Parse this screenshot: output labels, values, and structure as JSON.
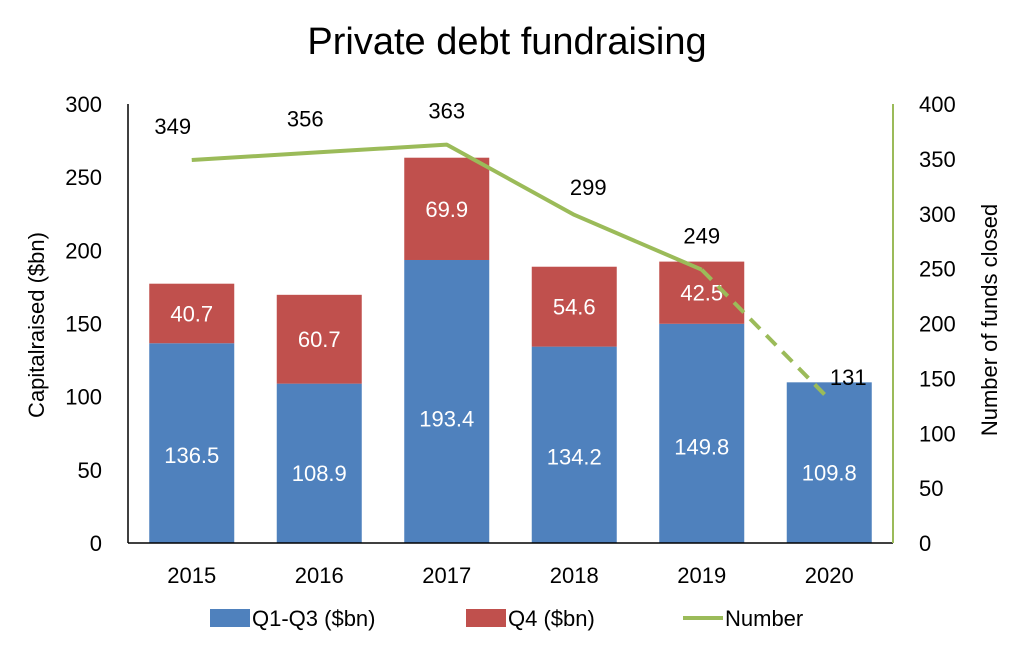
{
  "chart_data": {
    "type": "bar",
    "title": "Private debt fundraising",
    "categories": [
      "2015",
      "2016",
      "2017",
      "2018",
      "2019",
      "2020"
    ],
    "series": [
      {
        "name": "Q1-Q3 ($bn)",
        "kind": "stacked-bar",
        "axis": "left",
        "color": "#4f81bd",
        "values": [
          136.5,
          108.9,
          193.4,
          134.2,
          149.8,
          109.8
        ],
        "labels": [
          "136.5",
          "108.9",
          "193.4",
          "134.2",
          "149.8",
          "109.8"
        ]
      },
      {
        "name": "Q4 ($bn)",
        "kind": "stacked-bar",
        "axis": "left",
        "color": "#c0504d",
        "values": [
          40.7,
          60.7,
          69.9,
          54.6,
          42.5,
          null
        ],
        "labels": [
          "40.7",
          "60.7",
          "69.9",
          "54.6",
          "42.5",
          ""
        ]
      },
      {
        "name": "Number",
        "kind": "line",
        "axis": "right",
        "color": "#9bbb59",
        "values": [
          349,
          356,
          363,
          299,
          249,
          131
        ],
        "labels": [
          "349",
          "356",
          "363",
          "299",
          "249",
          "131"
        ],
        "dashed_last_segments": 1
      }
    ],
    "ylabel": "Capitalraised ($bn)",
    "y2label": "Number of funds closed",
    "ylim": [
      0,
      300
    ],
    "y2lim": [
      0,
      400
    ],
    "yticks": [
      "0",
      "50",
      "100",
      "150",
      "200",
      "250",
      "300"
    ],
    "y2ticks": [
      "0",
      "50",
      "100",
      "150",
      "200",
      "250",
      "300",
      "350",
      "400"
    ],
    "grid": false,
    "legend_position": "bottom"
  }
}
